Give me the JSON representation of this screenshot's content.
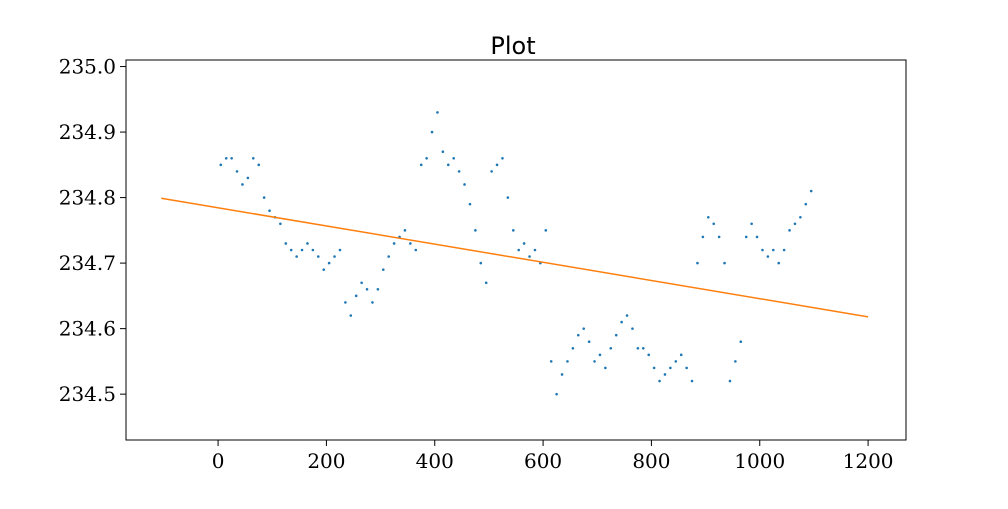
{
  "chart_data": {
    "type": "scatter",
    "title": "Plot",
    "xlabel": "",
    "ylabel": "",
    "xlim": [
      -170,
      1270
    ],
    "ylim": [
      234.43,
      235.01
    ],
    "xticks": [
      0,
      200,
      400,
      600,
      800,
      1000,
      1200
    ],
    "yticks": [
      234.5,
      234.6,
      234.7,
      234.8,
      234.9,
      235.0
    ],
    "xtick_labels": [
      "0",
      "200",
      "400",
      "600",
      "800",
      "1000",
      "1200"
    ],
    "ytick_labels": [
      "234.5",
      "234.6",
      "234.7",
      "234.8",
      "234.9",
      "235.0"
    ],
    "grid": false,
    "legend": "none",
    "series": [
      {
        "type": "scatter",
        "color": "#1f77b4",
        "x": [
          5,
          15,
          25,
          35,
          45,
          55,
          65,
          75,
          85,
          95,
          105,
          115,
          125,
          135,
          145,
          155,
          165,
          175,
          185,
          195,
          205,
          215,
          225,
          235,
          245,
          255,
          265,
          275,
          285,
          295,
          305,
          315,
          325,
          335,
          345,
          355,
          365,
          375,
          385,
          395,
          405,
          415,
          425,
          435,
          445,
          455,
          465,
          475,
          485,
          495,
          505,
          515,
          525,
          535,
          545,
          555,
          565,
          575,
          585,
          595,
          605,
          615,
          625,
          635,
          645,
          655,
          665,
          675,
          685,
          695,
          705,
          715,
          725,
          735,
          745,
          755,
          765,
          775,
          785,
          795,
          805,
          815,
          825,
          835,
          845,
          855,
          865,
          875,
          885,
          895,
          905,
          915,
          925,
          935,
          945,
          955,
          965,
          975,
          985,
          995,
          1005,
          1015,
          1025,
          1035,
          1045,
          1055,
          1065,
          1075,
          1085,
          1095
        ],
        "y": [
          234.85,
          234.86,
          234.86,
          234.84,
          234.82,
          234.83,
          234.86,
          234.85,
          234.8,
          234.78,
          234.77,
          234.76,
          234.73,
          234.72,
          234.71,
          234.72,
          234.73,
          234.72,
          234.71,
          234.69,
          234.7,
          234.71,
          234.72,
          234.64,
          234.62,
          234.65,
          234.67,
          234.66,
          234.64,
          234.66,
          234.69,
          234.71,
          234.73,
          234.74,
          234.75,
          234.73,
          234.72,
          234.85,
          234.86,
          234.9,
          234.93,
          234.87,
          234.85,
          234.86,
          234.84,
          234.82,
          234.79,
          234.75,
          234.7,
          234.67,
          234.84,
          234.85,
          234.86,
          234.8,
          234.75,
          234.72,
          234.73,
          234.71,
          234.72,
          234.7,
          234.75,
          234.55,
          234.5,
          234.53,
          234.55,
          234.57,
          234.59,
          234.6,
          234.58,
          234.55,
          234.56,
          234.54,
          234.57,
          234.59,
          234.61,
          234.62,
          234.6,
          234.57,
          234.57,
          234.56,
          234.54,
          234.52,
          234.53,
          234.54,
          234.55,
          234.56,
          234.54,
          234.52,
          234.7,
          234.74,
          234.77,
          234.76,
          234.74,
          234.7,
          234.52,
          234.55,
          234.58,
          234.74,
          234.76,
          234.74,
          234.72,
          234.71,
          234.72,
          234.7,
          234.72,
          234.75,
          234.76,
          234.77,
          234.79,
          234.81
        ]
      },
      {
        "type": "line",
        "color": "#ff7f0e",
        "x": [
          -105,
          1200
        ],
        "y": [
          234.799,
          234.618
        ]
      }
    ]
  }
}
